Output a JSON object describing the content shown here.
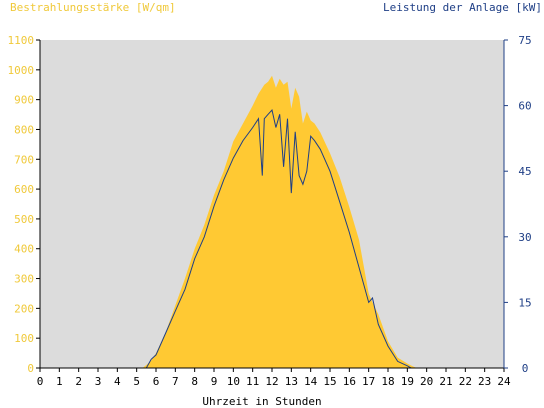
{
  "colors": {
    "left_axis": "#f0c93a",
    "right_axis": "#1f3f86",
    "area_fill": "#ffc933",
    "line": "#1f3f86",
    "plot_bg": "#dcdcdc",
    "axis": "#000000"
  },
  "chart_data": {
    "type": "area",
    "title": "",
    "ylabel_left": "Bestrahlungsstärke [W/qm]",
    "ylabel_right": "Leistung der Anlage [kW]",
    "xlabel": "Uhrzeit in Stunden",
    "xlim": [
      0,
      24
    ],
    "ylim_left": [
      0,
      1100
    ],
    "ylim_right": [
      0,
      75
    ],
    "x_ticks": [
      "0",
      "1",
      "2",
      "3",
      "4",
      "5",
      "6",
      "7",
      "8",
      "9",
      "10",
      "11",
      "12",
      "13",
      "14",
      "15",
      "16",
      "17",
      "18",
      "19",
      "20",
      "21",
      "22",
      "23",
      "24"
    ],
    "y_left_ticks": [
      "0",
      "100",
      "200",
      "300",
      "400",
      "500",
      "600",
      "700",
      "800",
      "900",
      "1000",
      "1100"
    ],
    "y_right_ticks": [
      "0",
      "15",
      "30",
      "45",
      "60",
      "75"
    ],
    "grid": false,
    "series": [
      {
        "name": "Bestrahlungsstärke [W/qm]",
        "axis": "left",
        "x": [
          0,
          5.3,
          5.5,
          5.75,
          6,
          6.5,
          7,
          7.5,
          8,
          8.5,
          9,
          9.5,
          10,
          10.5,
          11,
          11.3,
          11.6,
          11.8,
          12,
          12.2,
          12.4,
          12.6,
          12.8,
          13,
          13.2,
          13.4,
          13.6,
          13.8,
          14,
          14.2,
          14.5,
          15,
          15.5,
          16,
          16.5,
          17,
          17.2,
          17.5,
          18,
          18.5,
          19,
          19.3,
          19.5,
          24
        ],
        "values": [
          0,
          0,
          10,
          25,
          50,
          120,
          210,
          300,
          400,
          480,
          580,
          660,
          760,
          820,
          880,
          920,
          950,
          960,
          980,
          940,
          970,
          950,
          960,
          870,
          940,
          910,
          820,
          860,
          830,
          820,
          790,
          720,
          640,
          540,
          430,
          250,
          220,
          180,
          90,
          35,
          15,
          5,
          0,
          0
        ]
      },
      {
        "name": "Leistung der Anlage [kW]",
        "axis": "right",
        "x": [
          0,
          5.5,
          5.75,
          6,
          6.5,
          7,
          7.5,
          8,
          8.5,
          9,
          9.5,
          10,
          10.5,
          11,
          11.3,
          11.5,
          11.6,
          11.8,
          12,
          12.2,
          12.4,
          12.6,
          12.8,
          13,
          13.2,
          13.4,
          13.6,
          13.8,
          14,
          14.2,
          14.5,
          15,
          15.5,
          16,
          16.5,
          17,
          17.2,
          17.5,
          18,
          18.5,
          19,
          19.2,
          24
        ],
        "values": [
          0,
          0,
          2,
          3,
          8,
          13,
          18,
          25,
          30,
          37,
          43,
          48,
          52,
          55,
          57,
          44,
          57,
          58,
          59,
          55,
          58,
          46,
          57,
          40,
          54,
          44,
          42,
          45,
          53,
          52,
          50,
          45,
          38,
          31,
          23,
          15,
          16,
          10,
          5,
          1.5,
          0.5,
          0,
          0
        ]
      }
    ]
  }
}
